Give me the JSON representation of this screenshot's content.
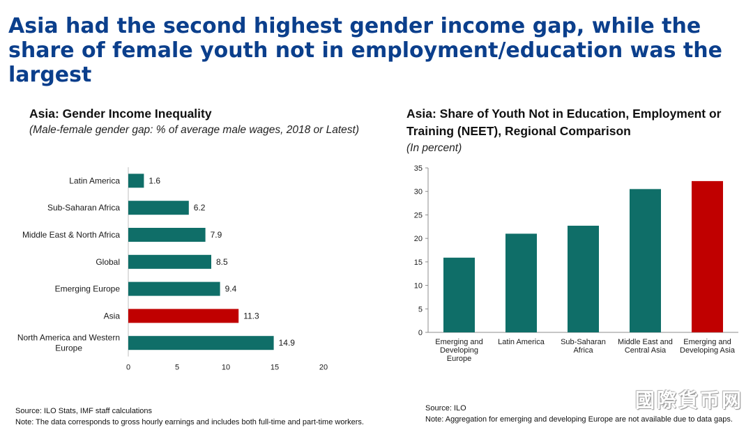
{
  "headline": "Asia had the second highest gender income gap, while the share of female youth not in employment/education was the largest",
  "left_panel": {
    "title": "Asia: Gender Income Inequality",
    "subtitle": "(Male-female gender gap: % of average male wages, 2018 or Latest)",
    "source": "Source: ILO Stats, IMF staff calculations",
    "note": "Note: The data corresponds to gross hourly earnings and includes both full-time and part-time workers."
  },
  "right_panel": {
    "title": "Asia: Share of Youth Not in Education, Employment or Training (NEET), Regional Comparison",
    "subtitle": "(In percent)",
    "source": "Source: ILO",
    "note": "Note: Aggregation for emerging and developing Europe are not available due to data gaps."
  },
  "watermark": "國際貨币网",
  "colors": {
    "headline": "#0b3f8c",
    "bar": "#0f6e68",
    "highlight": "#c00000"
  },
  "chart_data": [
    {
      "type": "bar",
      "orientation": "horizontal",
      "title": "Asia: Gender Income Inequality",
      "categories": [
        "Latin America",
        "Sub-Saharan Africa",
        "Middle East & North Africa",
        "Global",
        "Emerging Europe",
        "Asia",
        "North America and Western Europe"
      ],
      "values": [
        1.6,
        6.2,
        7.9,
        8.5,
        9.4,
        11.3,
        14.9
      ],
      "value_labels": [
        "1.6",
        "6.2",
        "7.9",
        "8.5",
        "9.4",
        "11.3",
        "14.9"
      ],
      "highlight_index": 5,
      "xlim": [
        0,
        20
      ],
      "xticks": [
        "0",
        "5",
        "10",
        "15",
        "20"
      ],
      "grid": false,
      "legend": "none"
    },
    {
      "type": "bar",
      "orientation": "vertical",
      "title": "Asia: Share of Youth Not in Education, Employment or Training (NEET), Regional Comparison",
      "categories": [
        "Emerging and Developing Europe",
        "Latin America",
        "Sub-Saharan Africa",
        "Middle East and Central Asia",
        "Emerging and Developing Asia"
      ],
      "values": [
        15.9,
        21.0,
        22.7,
        30.5,
        32.2
      ],
      "highlight_index": 4,
      "ylim": [
        0,
        35
      ],
      "yticks": [
        "0",
        "5",
        "10",
        "15",
        "20",
        "25",
        "30",
        "35"
      ],
      "grid": false,
      "legend": "none"
    }
  ]
}
